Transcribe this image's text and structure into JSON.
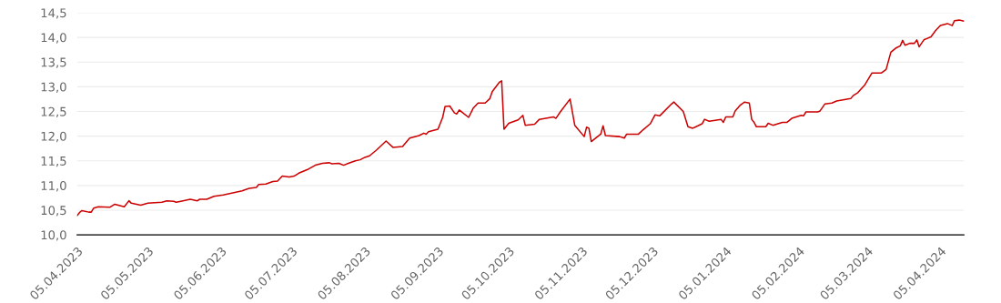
{
  "chart_data": {
    "type": "line",
    "x": [
      "2023-04-05",
      "2023-04-06",
      "2023-04-07",
      "2023-04-10",
      "2023-04-11",
      "2023-04-12",
      "2023-04-14",
      "2023-04-19",
      "2023-04-21",
      "2023-04-25",
      "2023-04-27",
      "2023-04-28",
      "2023-05-02",
      "2023-05-05",
      "2023-05-11",
      "2023-05-13",
      "2023-05-16",
      "2023-05-17",
      "2023-05-19",
      "2023-05-23",
      "2023-05-26",
      "2023-05-27",
      "2023-05-30",
      "2023-06-02",
      "2023-06-06",
      "2023-06-10",
      "2023-06-14",
      "2023-06-15",
      "2023-06-17",
      "2023-06-20",
      "2023-06-21",
      "2023-06-24",
      "2023-06-27",
      "2023-06-29",
      "2023-07-01",
      "2023-07-04",
      "2023-07-06",
      "2023-07-08",
      "2023-07-12",
      "2023-07-15",
      "2023-07-18",
      "2023-07-21",
      "2023-07-22",
      "2023-07-25",
      "2023-07-27",
      "2023-07-29",
      "2023-08-01",
      "2023-08-03",
      "2023-08-05",
      "2023-08-07",
      "2023-08-10",
      "2023-08-14",
      "2023-08-17",
      "2023-08-21",
      "2023-08-24",
      "2023-08-28",
      "2023-08-30",
      "2023-08-31",
      "2023-09-01",
      "2023-09-05",
      "2023-09-07",
      "2023-09-08",
      "2023-09-10",
      "2023-09-12",
      "2023-09-13",
      "2023-09-14",
      "2023-09-18",
      "2023-09-20",
      "2023-09-22",
      "2023-09-25",
      "2023-09-27",
      "2023-09-28",
      "2023-10-01",
      "2023-10-02",
      "2023-10-03",
      "2023-10-05",
      "2023-10-09",
      "2023-10-11",
      "2023-10-12",
      "2023-10-16",
      "2023-10-18",
      "2023-10-24",
      "2023-10-25",
      "2023-10-27",
      "2023-10-31",
      "2023-11-02",
      "2023-11-06",
      "2023-11-07",
      "2023-11-08",
      "2023-11-09",
      "2023-11-13",
      "2023-11-14",
      "2023-11-15",
      "2023-11-21",
      "2023-11-23",
      "2023-11-24",
      "2023-11-29",
      "2023-12-01",
      "2023-12-04",
      "2023-12-06",
      "2023-12-08",
      "2023-12-13",
      "2023-12-14",
      "2023-12-18",
      "2023-12-20",
      "2023-12-22",
      "2023-12-26",
      "2023-12-27",
      "2023-12-29",
      "2024-01-03",
      "2024-01-04",
      "2024-01-05",
      "2024-01-08",
      "2024-01-09",
      "2024-01-11",
      "2024-01-13",
      "2024-01-15",
      "2024-01-16",
      "2024-01-17",
      "2024-01-18",
      "2024-01-22",
      "2024-01-23",
      "2024-01-25",
      "2024-01-29",
      "2024-01-31",
      "2024-02-02",
      "2024-02-06",
      "2024-02-07",
      "2024-02-08",
      "2024-02-13",
      "2024-02-14",
      "2024-02-16",
      "2024-02-19",
      "2024-02-21",
      "2024-02-27",
      "2024-02-28",
      "2024-03-01",
      "2024-03-04",
      "2024-03-07",
      "2024-03-11",
      "2024-03-13",
      "2024-03-15",
      "2024-03-17",
      "2024-03-19",
      "2024-03-20",
      "2024-03-21",
      "2024-03-23",
      "2024-03-25",
      "2024-03-26",
      "2024-03-27",
      "2024-03-29",
      "2024-04-01",
      "2024-04-03",
      "2024-04-05",
      "2024-04-08",
      "2024-04-10",
      "2024-04-11",
      "2024-04-13",
      "2024-04-15"
    ],
    "series": [
      {
        "color": "#cc0000",
        "values": [
          10.39,
          10.45,
          10.49,
          10.46,
          10.46,
          10.54,
          10.57,
          10.56,
          10.62,
          10.57,
          10.69,
          10.64,
          10.6,
          10.64,
          10.66,
          10.69,
          10.68,
          10.66,
          10.68,
          10.72,
          10.69,
          10.72,
          10.72,
          10.78,
          10.81,
          10.85,
          10.89,
          10.91,
          10.94,
          10.96,
          11.02,
          11.03,
          11.08,
          11.09,
          11.19,
          11.17,
          11.19,
          11.25,
          11.33,
          11.41,
          11.45,
          11.46,
          11.44,
          11.45,
          11.41,
          11.45,
          11.5,
          11.52,
          11.57,
          11.6,
          11.72,
          11.9,
          11.77,
          11.79,
          11.96,
          12.01,
          12.06,
          12.04,
          12.09,
          12.14,
          12.38,
          12.6,
          12.61,
          12.47,
          12.45,
          12.53,
          12.38,
          12.57,
          12.67,
          12.67,
          12.76,
          12.9,
          13.09,
          13.12,
          12.14,
          12.26,
          12.33,
          12.42,
          12.22,
          12.24,
          12.34,
          12.39,
          12.36,
          12.5,
          12.75,
          12.22,
          11.99,
          12.18,
          12.16,
          11.89,
          12.04,
          12.21,
          12.01,
          11.99,
          11.96,
          12.04,
          12.04,
          12.13,
          12.25,
          12.43,
          12.41,
          12.65,
          12.69,
          12.5,
          12.19,
          12.16,
          12.25,
          12.34,
          12.3,
          12.34,
          12.28,
          12.39,
          12.39,
          12.51,
          12.62,
          12.69,
          12.67,
          12.34,
          12.28,
          12.19,
          12.19,
          12.26,
          12.22,
          12.28,
          12.28,
          12.36,
          12.42,
          12.41,
          12.49,
          12.49,
          12.51,
          12.65,
          12.67,
          12.71,
          12.76,
          12.82,
          12.88,
          13.04,
          13.28,
          13.28,
          13.35,
          13.7,
          13.78,
          13.83,
          13.94,
          13.84,
          13.88,
          13.88,
          13.95,
          13.81,
          13.95,
          14.01,
          14.14,
          14.24,
          14.28,
          14.24,
          14.34,
          14.35,
          14.33
        ]
      }
    ],
    "xlim": [
      "2023-04-05",
      "2024-04-15"
    ],
    "xticks": [
      {
        "value": "2023-04-05",
        "label": "05.04.2023"
      },
      {
        "value": "2023-05-05",
        "label": "05.05.2023"
      },
      {
        "value": "2023-06-05",
        "label": "05.06.2023"
      },
      {
        "value": "2023-07-05",
        "label": "05.07.2023"
      },
      {
        "value": "2023-08-05",
        "label": "05.08.2023"
      },
      {
        "value": "2023-09-05",
        "label": "05.09.2023"
      },
      {
        "value": "2023-10-05",
        "label": "05.10.2023"
      },
      {
        "value": "2023-11-05",
        "label": "05.11.2023"
      },
      {
        "value": "2023-12-05",
        "label": "05.12.2023"
      },
      {
        "value": "2024-01-05",
        "label": "05.01.2024"
      },
      {
        "value": "2024-02-05",
        "label": "05.02.2024"
      },
      {
        "value": "2024-03-05",
        "label": "05.03.2024"
      },
      {
        "value": "2024-04-05",
        "label": "05.04.2024"
      }
    ],
    "ylim": [
      10,
      14.5
    ],
    "yticks": [
      {
        "value": 10,
        "label": "10,0"
      },
      {
        "value": 10.5,
        "label": "10,5"
      },
      {
        "value": 11,
        "label": "11,0"
      },
      {
        "value": 11.5,
        "label": "11,5"
      },
      {
        "value": 12,
        "label": "12,0"
      },
      {
        "value": 12.5,
        "label": "12,5"
      },
      {
        "value": 13,
        "label": "13,0"
      },
      {
        "value": 13.5,
        "label": "13,5"
      },
      {
        "value": 14,
        "label": "14,0"
      },
      {
        "value": 14.5,
        "label": "14,5"
      }
    ],
    "grid": "y",
    "line_style": "solid"
  }
}
